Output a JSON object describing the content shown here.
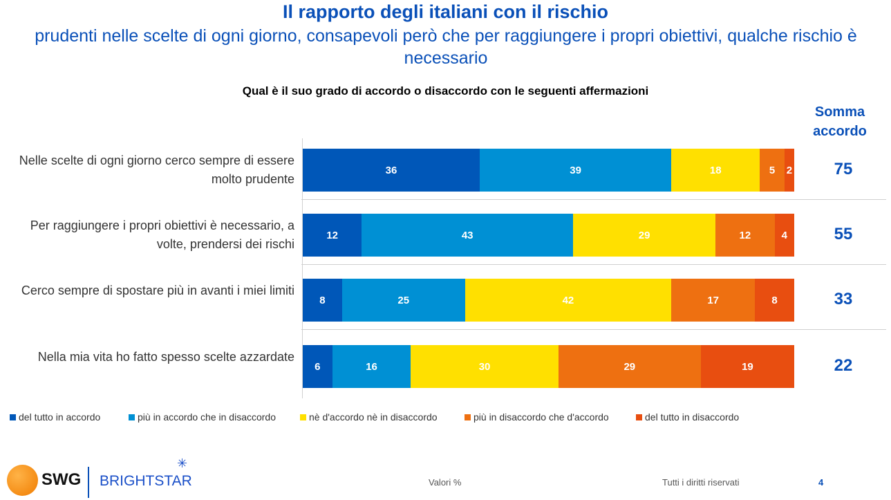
{
  "title": "Il rapporto degli italiani con il rischio",
  "subtitle": "prudenti nelle scelte di ogni giorno, consapevoli però che per raggiungere i propri obiettivi, qualche rischio è necessario",
  "question": "Qual è il suo grado di accordo o disaccordo con le seguenti affermazioni",
  "somma_label": "Somma accordo",
  "chart_data": {
    "type": "bar",
    "orientation": "horizontal-stacked-100",
    "categories": [
      "Nelle scelte di ogni giorno cerco sempre di essere molto prudente",
      "Per raggiungere i propri obiettivi è necessario, a volte, prendersi dei rischi",
      "Cerco sempre di spostare più in avanti i miei limiti",
      "Nella mia vita ho fatto spesso scelte azzardate"
    ],
    "series": [
      {
        "name": "del tutto in accordo",
        "color": "#0057b8",
        "values": [
          36,
          12,
          8,
          6
        ]
      },
      {
        "name": "più in accordo che in disaccordo",
        "color": "#0090d4",
        "values": [
          39,
          43,
          25,
          16
        ]
      },
      {
        "name": "nè d'accordo nè in disaccordo",
        "color": "#ffe000",
        "values": [
          18,
          29,
          42,
          30
        ]
      },
      {
        "name": "più in disaccordo che d'accordo",
        "color": "#ee7011",
        "values": [
          5,
          12,
          17,
          29
        ]
      },
      {
        "name": "del tutto in disaccordo",
        "color": "#e84e10",
        "values": [
          2,
          4,
          8,
          19
        ]
      }
    ],
    "somma_accordo": [
      75,
      55,
      33,
      22
    ],
    "legend_position": "bottom",
    "unit": "%"
  },
  "footer": {
    "logo_swg": "SWG",
    "logo_brightstar": "BRIGHTSTAR",
    "note": "Valori %",
    "rights": "Tutti i diritti riservati",
    "page": "4"
  }
}
